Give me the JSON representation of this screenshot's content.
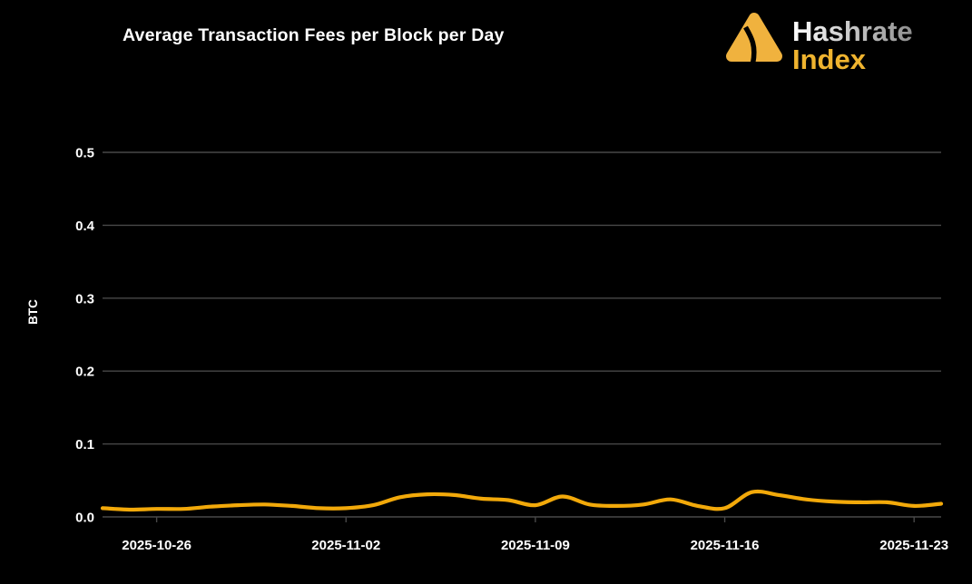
{
  "header": {
    "title": "Average Transaction Fees per Block per Day"
  },
  "logo": {
    "brand_top": "Hashrate",
    "brand_bottom": "Index"
  },
  "colors": {
    "background": "#000000",
    "line": "#F2A90A",
    "grid": "#484848",
    "axis_text": "#FFFFFF",
    "logo_gold": "#F0B23E",
    "logo_text_gradient_start": "#FFFFFF",
    "logo_text_gradient_end": "#8E8E8E"
  },
  "chart_data": {
    "type": "line",
    "title": "Average Transaction Fees per Block per Day",
    "xlabel": "",
    "ylabel": "BTC",
    "ylim": [
      0,
      0.5
    ],
    "grid": true,
    "legend": false,
    "y_ticks": [
      "0.0",
      "0.1",
      "0.2",
      "0.3",
      "0.4",
      "0.5"
    ],
    "x_tick_labels": [
      "2025-10-26",
      "2025-11-02",
      "2025-11-09",
      "2025-11-16",
      "2025-11-23"
    ],
    "categories": [
      "2025-10-24",
      "2025-10-25",
      "2025-10-26",
      "2025-10-27",
      "2025-10-28",
      "2025-10-29",
      "2025-10-30",
      "2025-10-31",
      "2025-11-01",
      "2025-11-02",
      "2025-11-03",
      "2025-11-04",
      "2025-11-05",
      "2025-11-06",
      "2025-11-07",
      "2025-11-08",
      "2025-11-09",
      "2025-11-10",
      "2025-11-11",
      "2025-11-12",
      "2025-11-13",
      "2025-11-14",
      "2025-11-15",
      "2025-11-16",
      "2025-11-17",
      "2025-11-18",
      "2025-11-19",
      "2025-11-20",
      "2025-11-21",
      "2025-11-22",
      "2025-11-23",
      "2025-11-24"
    ],
    "series": [
      {
        "name": "Average transaction fees per block (BTC)",
        "color": "#F2A90A",
        "values": [
          0.012,
          0.01,
          0.011,
          0.011,
          0.014,
          0.016,
          0.017,
          0.015,
          0.012,
          0.012,
          0.016,
          0.027,
          0.031,
          0.03,
          0.025,
          0.023,
          0.016,
          0.028,
          0.017,
          0.015,
          0.017,
          0.024,
          0.015,
          0.012,
          0.034,
          0.03,
          0.024,
          0.021,
          0.02,
          0.02,
          0.015,
          0.018
        ]
      }
    ]
  }
}
